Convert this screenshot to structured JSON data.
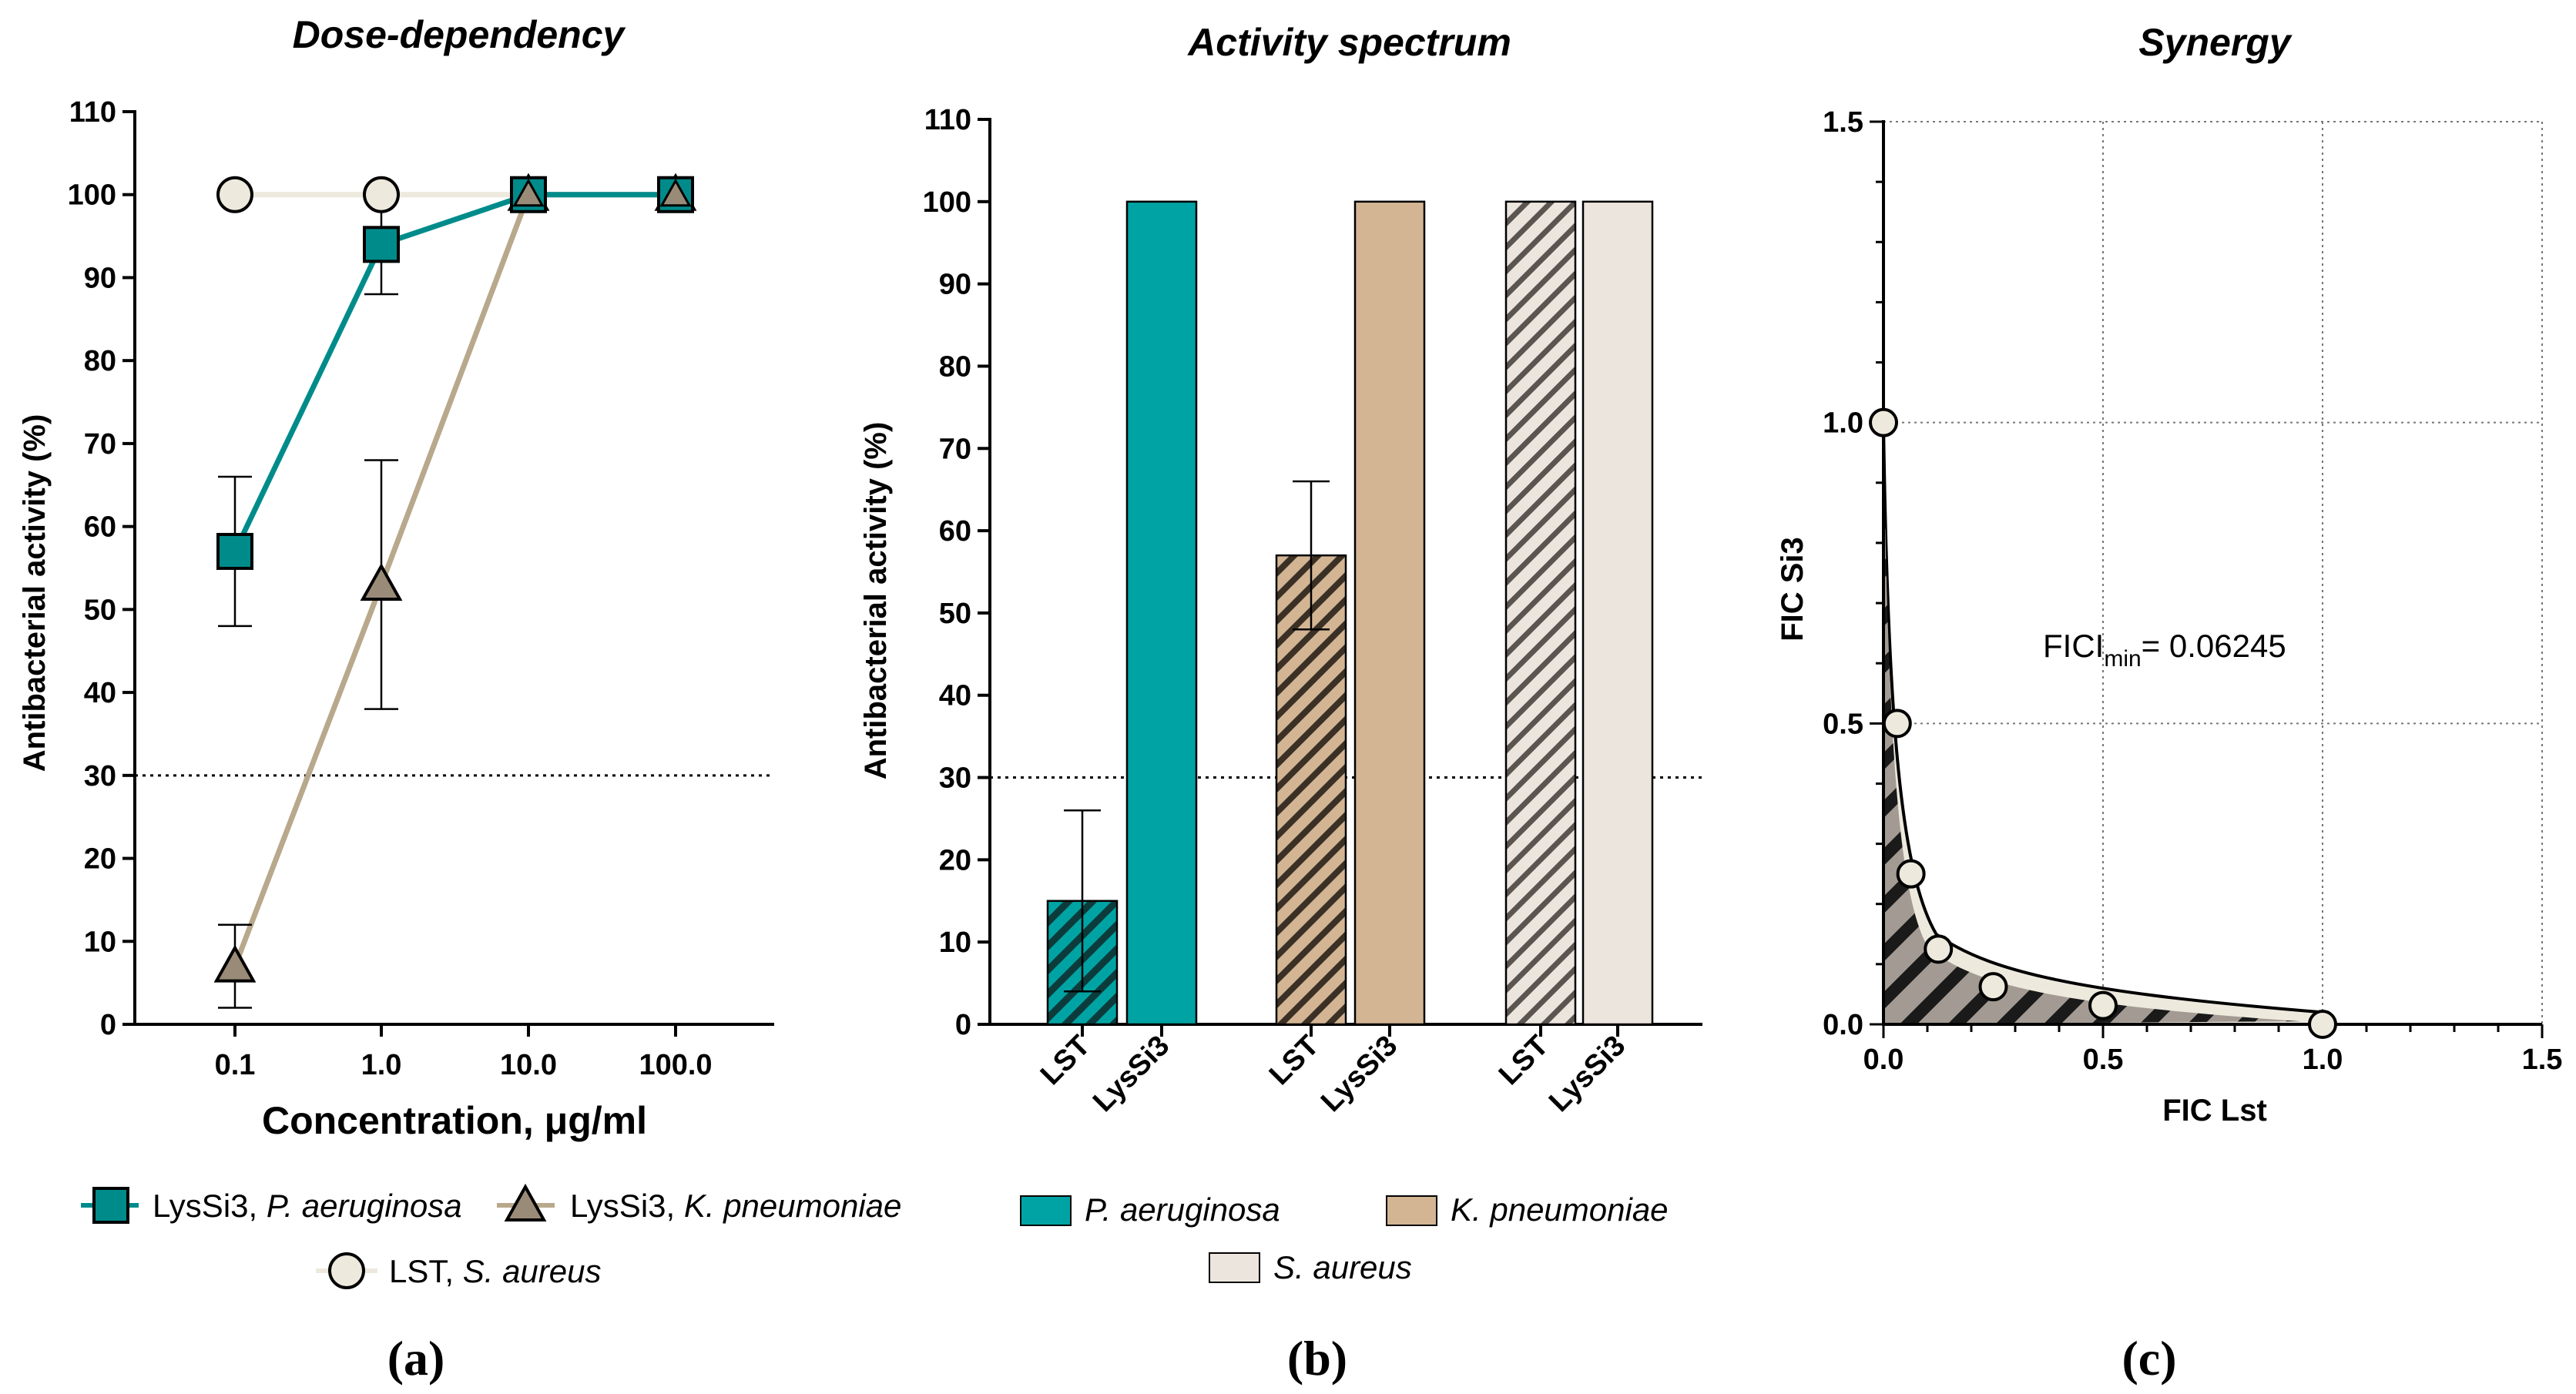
{
  "colors": {
    "teal": "#008b8b",
    "teal_bar": "#00a3a3",
    "tan": "#9a8b78",
    "tan_line": "#b8a88c",
    "tan_bar": "#d3b594",
    "cream": "#ede9dd",
    "cream_bar": "#ece5de",
    "grey_hatch": "#a39b93"
  },
  "panels": {
    "a": {
      "label": "(a)"
    },
    "b": {
      "label": "(b)"
    },
    "c": {
      "label": "(c)",
      "fici_prefix": "FICI",
      "fici_sub": "min",
      "fici_value": "= 0.06245"
    }
  },
  "legend_a": [
    {
      "name": "LysSi3, ",
      "italic": "P. aeruginosa"
    },
    {
      "name": "LysSi3, ",
      "italic": "K. pneumoniae"
    },
    {
      "name": "LST, ",
      "italic": "S. aureus"
    }
  ],
  "legend_b": [
    {
      "italic": "P. aeruginosa"
    },
    {
      "italic": "K. pneumoniae"
    },
    {
      "italic": "S. aureus"
    }
  ],
  "chart_data": [
    {
      "type": "line",
      "title": "Dose-dependency",
      "xlabel": "Concentration, μg/ml",
      "ylabel": "Antibacterial activity (%)",
      "x_scale": "log",
      "x": [
        0.1,
        1.0,
        10.0,
        100.0
      ],
      "xticks": [
        "0.1",
        "1.0",
        "10.0",
        "100.0"
      ],
      "ylim": [
        0,
        110
      ],
      "yticks": [
        "0",
        "10",
        "20",
        "30",
        "40",
        "50",
        "60",
        "70",
        "80",
        "90",
        "100",
        "110"
      ],
      "threshold": 30,
      "series": [
        {
          "name": "LST, S. aureus",
          "marker": "circle",
          "values": [
            100,
            100,
            100,
            100
          ],
          "err": [
            0,
            0,
            0,
            0
          ]
        },
        {
          "name": "LysSi3, K. pneumoniae",
          "marker": "triangle",
          "values": [
            7,
            53,
            100,
            100
          ],
          "err": [
            5,
            15,
            0,
            0
          ]
        },
        {
          "name": "LysSi3, P. aeruginosa",
          "marker": "square",
          "values": [
            57,
            94,
            100,
            100
          ],
          "err": [
            9,
            6,
            0,
            0
          ]
        }
      ]
    },
    {
      "type": "bar",
      "title": "Activity spectrum",
      "ylabel": "Antibacterial activity (%)",
      "ylim": [
        0,
        110
      ],
      "yticks": [
        "0",
        "10",
        "20",
        "30",
        "40",
        "50",
        "60",
        "70",
        "80",
        "90",
        "100",
        "110"
      ],
      "threshold": 30,
      "groups": [
        "P. aeruginosa",
        "K. pneumoniae",
        "S. aureus"
      ],
      "categories": [
        "LST",
        "LysSi3",
        "LST",
        "LysSi3",
        "LST",
        "LysSi3"
      ],
      "values": [
        15,
        100,
        57,
        100,
        100,
        100
      ],
      "err": [
        11,
        0,
        9,
        0,
        0,
        0
      ]
    },
    {
      "type": "scatter",
      "title": "Synergy",
      "xlabel": "FIC Lst",
      "ylabel": "FIC Si3",
      "xlim": [
        0,
        1.5
      ],
      "ylim": [
        0,
        1.5
      ],
      "xticks": [
        "0.0",
        "0.5",
        "1.0",
        "1.5"
      ],
      "yticks": [
        "0.0",
        "0.5",
        "1.0",
        "1.5"
      ],
      "x": [
        0.0,
        0.03125,
        0.0625,
        0.125,
        0.25,
        0.5,
        1.0
      ],
      "y": [
        1.0,
        0.5,
        0.25,
        0.125,
        0.0625,
        0.03125,
        0.0
      ],
      "fici_min": 0.06245
    }
  ]
}
